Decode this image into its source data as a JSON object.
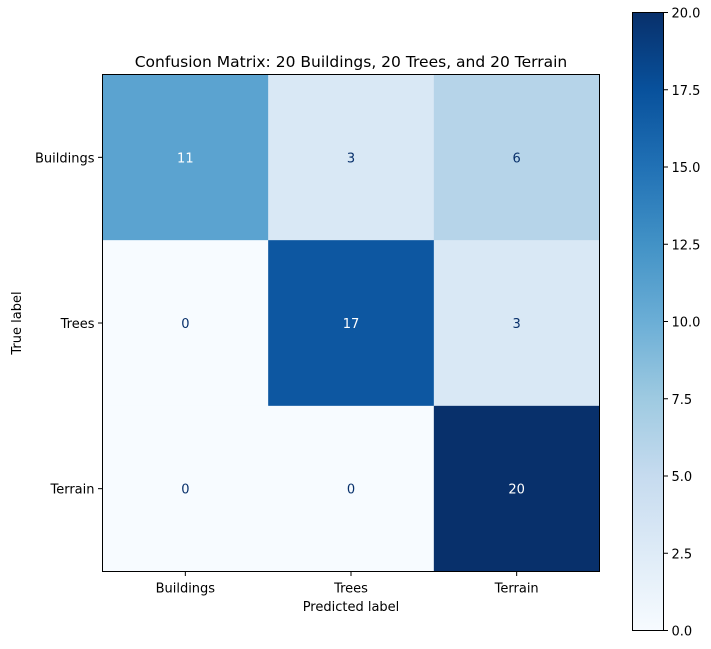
{
  "chart_data": {
    "type": "heatmap",
    "title": "Confusion Matrix: 20 Buildings, 20 Trees, and 20 Terrain",
    "xlabel": "Predicted label",
    "ylabel": "True label",
    "x_categories": [
      "Buildings",
      "Trees",
      "Terrain"
    ],
    "y_categories": [
      "Buildings",
      "Trees",
      "Terrain"
    ],
    "values": [
      [
        11,
        3,
        6
      ],
      [
        0,
        17,
        3
      ],
      [
        0,
        0,
        20
      ]
    ],
    "colorbar": {
      "range": [
        0,
        20
      ],
      "ticks": [
        0.0,
        2.5,
        5.0,
        7.5,
        10.0,
        12.5,
        15.0,
        17.5,
        20.0
      ],
      "tick_labels": [
        "0.0",
        "2.5",
        "5.0",
        "7.5",
        "10.0",
        "12.5",
        "15.0",
        "17.5",
        "20.0"
      ],
      "colormap": "Blues"
    },
    "grid": false,
    "text_colors": {
      "on_dark": "#ffffff",
      "on_light": "#08306b"
    }
  }
}
